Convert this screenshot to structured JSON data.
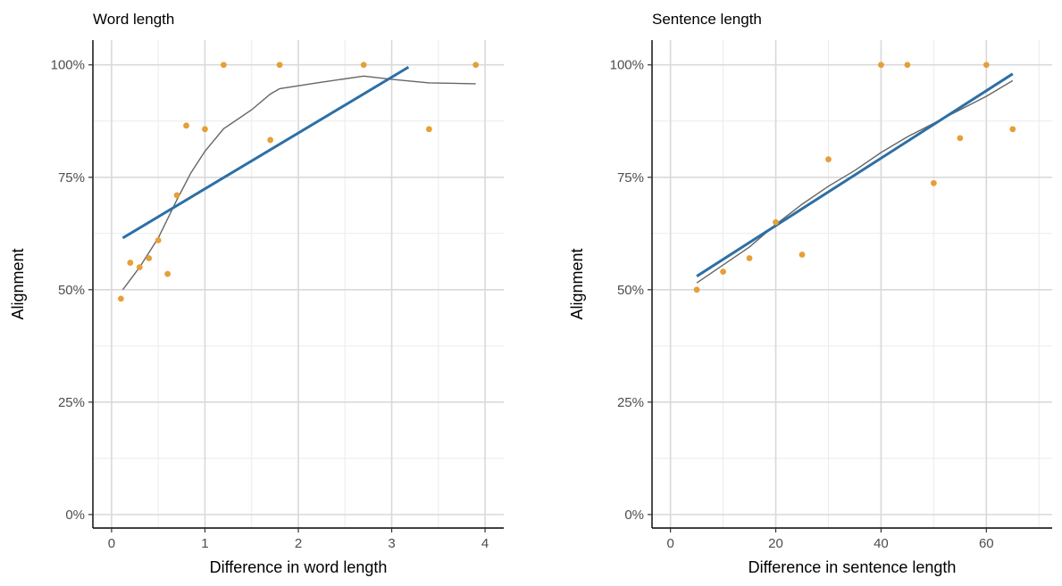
{
  "colors": {
    "points": "#E69F39",
    "fit_line": "#2C6FA6",
    "smooth_line": "#666666",
    "grid_major": "#D9D9D9",
    "grid_minor": "#EBEBEB",
    "axis": "#000000"
  },
  "chart_data": [
    {
      "type": "scatter",
      "title": "Word length",
      "xlabel": "Difference in word length",
      "ylabel": "Alignment",
      "xlim": [
        -0.2,
        4.2
      ],
      "ylim": [
        -0.03,
        1.055
      ],
      "x_ticks": [
        0,
        1,
        2,
        3,
        4
      ],
      "x_tick_labels": [
        "0",
        "1",
        "2",
        "3",
        "4"
      ],
      "y_ticks": [
        0,
        0.25,
        0.5,
        0.75,
        1.0
      ],
      "y_tick_labels": [
        "0%",
        "25%",
        "50%",
        "75%",
        "100%"
      ],
      "grid": true,
      "points": [
        {
          "x": 0.1,
          "y": 0.48
        },
        {
          "x": 0.2,
          "y": 0.56
        },
        {
          "x": 0.3,
          "y": 0.55
        },
        {
          "x": 0.4,
          "y": 0.57
        },
        {
          "x": 0.5,
          "y": 0.61
        },
        {
          "x": 0.6,
          "y": 0.535
        },
        {
          "x": 0.7,
          "y": 0.71
        },
        {
          "x": 0.8,
          "y": 0.865
        },
        {
          "x": 1.0,
          "y": 0.857
        },
        {
          "x": 1.2,
          "y": 1.0
        },
        {
          "x": 1.7,
          "y": 0.833
        },
        {
          "x": 1.8,
          "y": 1.0
        },
        {
          "x": 2.7,
          "y": 1.0
        },
        {
          "x": 3.4,
          "y": 0.857
        },
        {
          "x": 3.9,
          "y": 1.0
        }
      ],
      "linear_fit": [
        [
          0.12,
          0.615
        ],
        [
          3.18,
          0.995
        ]
      ],
      "smooth": [
        [
          0.12,
          0.5
        ],
        [
          0.3,
          0.55
        ],
        [
          0.5,
          0.615
        ],
        [
          0.7,
          0.7
        ],
        [
          0.85,
          0.76
        ],
        [
          1.0,
          0.808
        ],
        [
          1.2,
          0.858
        ],
        [
          1.5,
          0.9
        ],
        [
          1.7,
          0.935
        ],
        [
          1.8,
          0.947
        ],
        [
          2.2,
          0.96
        ],
        [
          2.7,
          0.975
        ],
        [
          3.0,
          0.968
        ],
        [
          3.4,
          0.96
        ],
        [
          3.9,
          0.958
        ]
      ]
    },
    {
      "type": "scatter",
      "title": "Sentence length",
      "xlabel": "Difference in sentence length",
      "ylabel": "Alignment",
      "xlim": [
        -3.5,
        72.5
      ],
      "ylim": [
        -0.03,
        1.055
      ],
      "x_ticks": [
        0,
        20,
        40,
        60
      ],
      "x_tick_labels": [
        "0",
        "20",
        "40",
        "60"
      ],
      "y_ticks": [
        0,
        0.25,
        0.5,
        0.75,
        1.0
      ],
      "y_tick_labels": [
        "0%",
        "25%",
        "50%",
        "75%",
        "100%"
      ],
      "grid": true,
      "points": [
        {
          "x": 5,
          "y": 0.5
        },
        {
          "x": 10,
          "y": 0.54
        },
        {
          "x": 15,
          "y": 0.57
        },
        {
          "x": 20,
          "y": 0.65
        },
        {
          "x": 25,
          "y": 0.578
        },
        {
          "x": 30,
          "y": 0.79
        },
        {
          "x": 40,
          "y": 1.0
        },
        {
          "x": 45,
          "y": 1.0
        },
        {
          "x": 50,
          "y": 0.737
        },
        {
          "x": 55,
          "y": 0.837
        },
        {
          "x": 60,
          "y": 1.0
        },
        {
          "x": 65,
          "y": 0.857
        }
      ],
      "linear_fit": [
        [
          5,
          0.53
        ],
        [
          65,
          0.98
        ]
      ],
      "smooth": [
        [
          5,
          0.515
        ],
        [
          10,
          0.555
        ],
        [
          15,
          0.595
        ],
        [
          20,
          0.645
        ],
        [
          25,
          0.69
        ],
        [
          30,
          0.73
        ],
        [
          35,
          0.765
        ],
        [
          40,
          0.805
        ],
        [
          45,
          0.84
        ],
        [
          50,
          0.87
        ],
        [
          55,
          0.9
        ],
        [
          60,
          0.93
        ],
        [
          65,
          0.965
        ]
      ]
    }
  ]
}
